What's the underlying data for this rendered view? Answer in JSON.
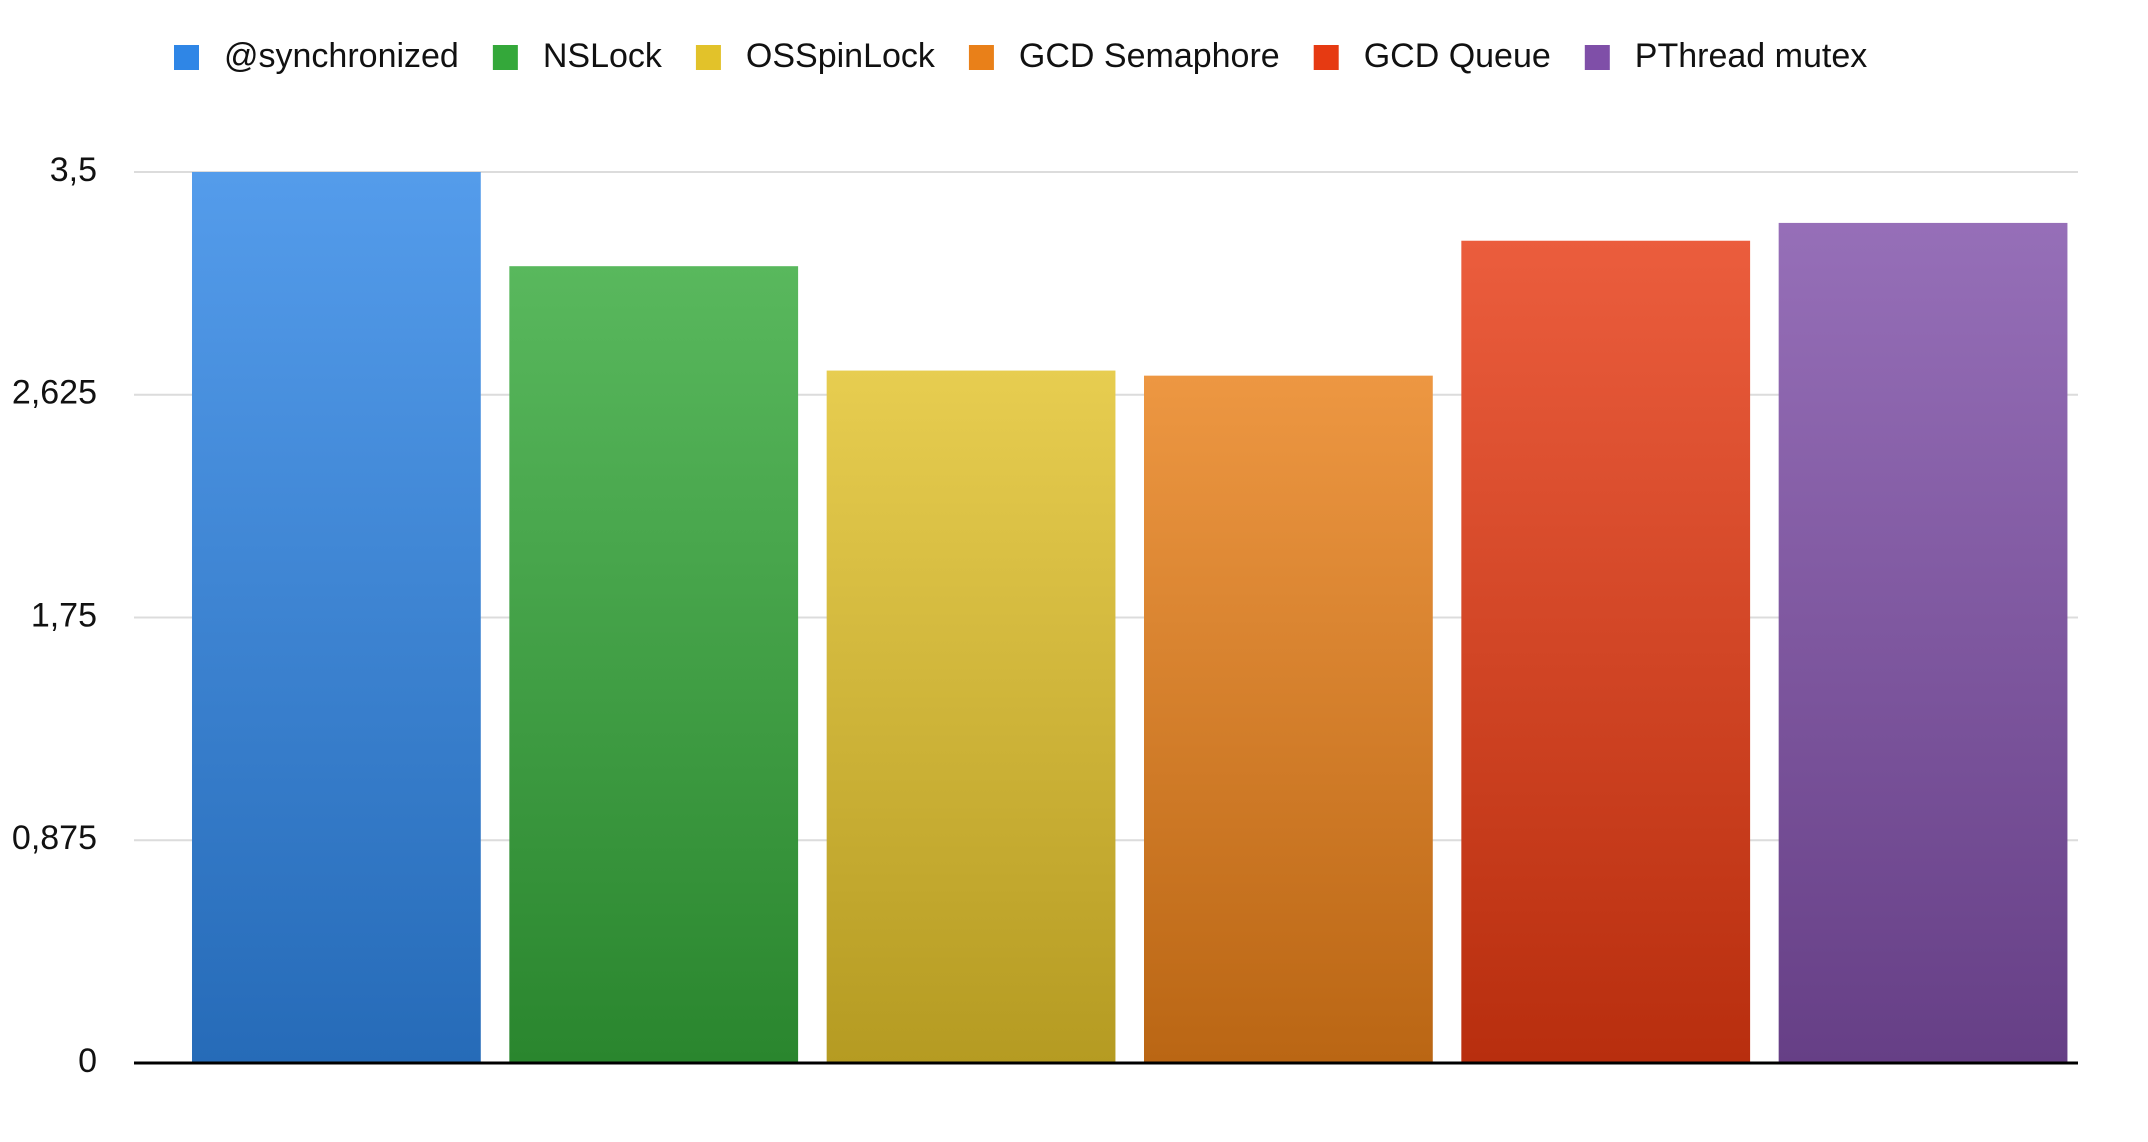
{
  "chart_data": {
    "type": "bar",
    "categories": [
      null
    ],
    "series": [
      {
        "name": "@synchronized",
        "color": "#2f86e6",
        "values": [
          3.5
        ]
      },
      {
        "name": "NSLock",
        "color": "#34a83a",
        "values": [
          3.13
        ]
      },
      {
        "name": "OSSpinLock",
        "color": "#e2c22a",
        "values": [
          2.72
        ]
      },
      {
        "name": "GCD Semaphore",
        "color": "#e98019",
        "values": [
          2.7
        ]
      },
      {
        "name": "GCD Queue",
        "color": "#e63a12",
        "values": [
          3.23
        ]
      },
      {
        "name": "PThread mutex",
        "color": "#7f4fa8",
        "values": [
          3.3
        ]
      }
    ],
    "ylim": [
      0,
      3.5
    ],
    "yticks": [
      0,
      {
        "value": 0.875,
        "label": "0,875"
      },
      {
        "value": 1.75,
        "label": "1,75"
      },
      {
        "value": 2.625,
        "label": "2,625"
      },
      {
        "value": 3.5,
        "label": "3,5"
      }
    ],
    "grid": true,
    "legend": "top"
  }
}
